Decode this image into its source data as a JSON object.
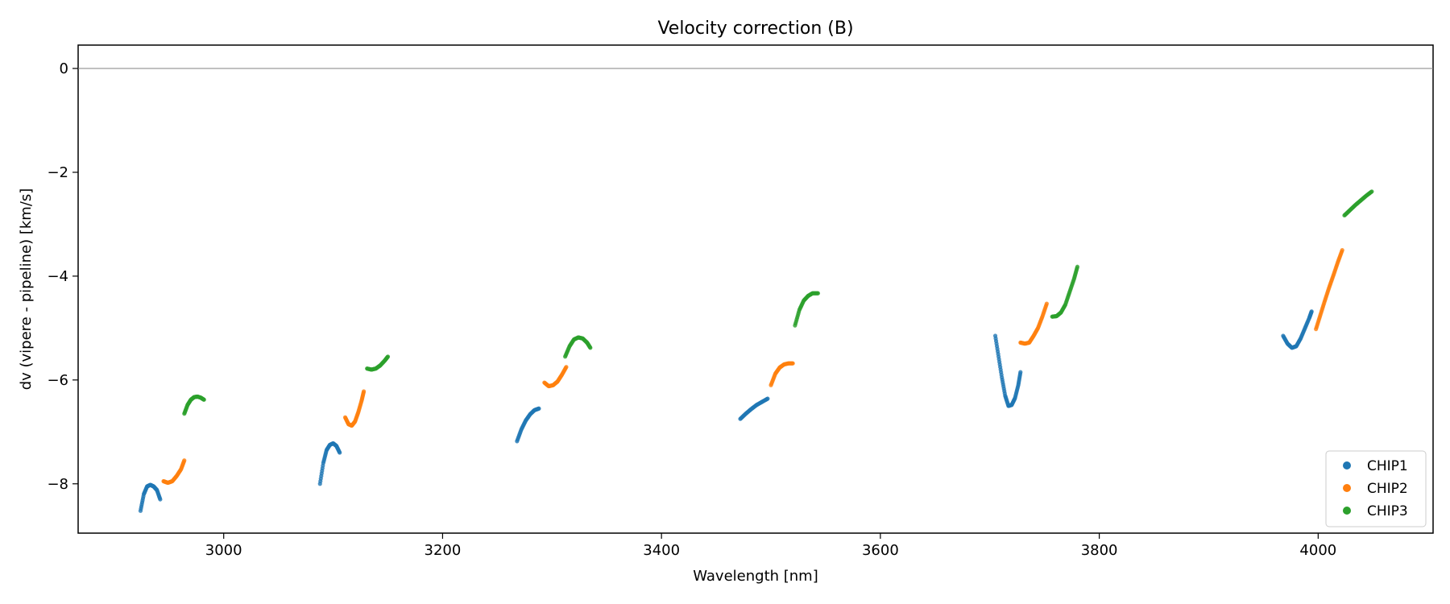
{
  "chart_data": {
    "type": "scatter",
    "title": "Velocity correction (B)",
    "xlabel": "Wavelength [nm]",
    "ylabel": "dv (vipere - pipeline) [km/s]",
    "xlim": [
      2867,
      4105
    ],
    "ylim": [
      -8.95,
      0.45
    ],
    "xticks": [
      3000,
      3200,
      3400,
      3600,
      3800,
      4000
    ],
    "yticks": [
      0,
      -2,
      -4,
      -6,
      -8
    ],
    "hline": 0,
    "legend_position": "lower-right",
    "colors": {
      "CHIP1": "#1f77b4",
      "CHIP2": "#ff7f0e",
      "CHIP3": "#2ca02c",
      "hline": "#808080"
    },
    "series": [
      {
        "name": "CHIP1",
        "segments": [
          {
            "x": [
              2924,
              2927,
              2930,
              2933,
              2936,
              2939,
              2942
            ],
            "y": [
              -8.52,
              -8.2,
              -8.05,
              -8.02,
              -8.05,
              -8.12,
              -8.3
            ]
          },
          {
            "x": [
              3088,
              3091,
              3094,
              3097,
              3100,
              3103,
              3106
            ],
            "y": [
              -8.0,
              -7.6,
              -7.35,
              -7.25,
              -7.22,
              -7.27,
              -7.4
            ]
          },
          {
            "x": [
              3268,
              3272,
              3276,
              3280,
              3284,
              3288
            ],
            "y": [
              -7.18,
              -6.95,
              -6.78,
              -6.66,
              -6.58,
              -6.55
            ]
          },
          {
            "x": [
              3472,
              3477,
              3482,
              3487,
              3492,
              3497
            ],
            "y": [
              -6.75,
              -6.65,
              -6.56,
              -6.48,
              -6.42,
              -6.36
            ]
          },
          {
            "x": [
              3705,
              3708,
              3711,
              3714,
              3717,
              3720,
              3723,
              3726,
              3728
            ],
            "y": [
              -5.15,
              -5.55,
              -5.95,
              -6.3,
              -6.5,
              -6.48,
              -6.35,
              -6.1,
              -5.85
            ]
          },
          {
            "x": [
              3968,
              3972,
              3976,
              3980,
              3984,
              3988,
              3992,
              3994
            ],
            "y": [
              -5.15,
              -5.3,
              -5.38,
              -5.35,
              -5.2,
              -5.0,
              -4.8,
              -4.68
            ]
          }
        ]
      },
      {
        "name": "CHIP2",
        "segments": [
          {
            "x": [
              2945,
              2949,
              2953,
              2957,
              2961,
              2964
            ],
            "y": [
              -7.95,
              -7.98,
              -7.95,
              -7.85,
              -7.72,
              -7.55
            ]
          },
          {
            "x": [
              3111,
              3114,
              3117,
              3120,
              3123,
              3126,
              3128
            ],
            "y": [
              -6.72,
              -6.85,
              -6.88,
              -6.8,
              -6.62,
              -6.4,
              -6.22
            ]
          },
          {
            "x": [
              3293,
              3297,
              3301,
              3305,
              3309,
              3313
            ],
            "y": [
              -6.05,
              -6.12,
              -6.1,
              -6.03,
              -5.9,
              -5.75
            ]
          },
          {
            "x": [
              3500,
              3504,
              3508,
              3512,
              3516,
              3520
            ],
            "y": [
              -6.1,
              -5.88,
              -5.76,
              -5.7,
              -5.68,
              -5.68
            ]
          },
          {
            "x": [
              3728,
              3732,
              3736,
              3740,
              3744,
              3748,
              3752
            ],
            "y": [
              -5.28,
              -5.3,
              -5.28,
              -5.15,
              -5.0,
              -4.78,
              -4.53
            ]
          },
          {
            "x": [
              3998,
              4002,
              4006,
              4010,
              4014,
              4018,
              4022
            ],
            "y": [
              -5.02,
              -4.75,
              -4.48,
              -4.22,
              -3.98,
              -3.73,
              -3.5
            ]
          }
        ]
      },
      {
        "name": "CHIP3",
        "segments": [
          {
            "x": [
              2964,
              2967,
              2970,
              2973,
              2976,
              2979,
              2982
            ],
            "y": [
              -6.65,
              -6.48,
              -6.38,
              -6.33,
              -6.32,
              -6.34,
              -6.38
            ]
          },
          {
            "x": [
              3131,
              3135,
              3139,
              3143,
              3147,
              3150
            ],
            "y": [
              -5.78,
              -5.8,
              -5.78,
              -5.72,
              -5.63,
              -5.55
            ]
          },
          {
            "x": [
              3312,
              3316,
              3320,
              3324,
              3328,
              3332,
              3335
            ],
            "y": [
              -5.55,
              -5.35,
              -5.22,
              -5.18,
              -5.2,
              -5.28,
              -5.38
            ]
          },
          {
            "x": [
              3522,
              3526,
              3530,
              3534,
              3538,
              3543
            ],
            "y": [
              -4.95,
              -4.65,
              -4.47,
              -4.38,
              -4.33,
              -4.33
            ]
          },
          {
            "x": [
              3757,
              3761,
              3765,
              3769,
              3773,
              3777,
              3780
            ],
            "y": [
              -4.78,
              -4.77,
              -4.7,
              -4.55,
              -4.3,
              -4.05,
              -3.82
            ]
          },
          {
            "x": [
              4024,
              4029,
              4034,
              4039,
              4044,
              4049
            ],
            "y": [
              -2.83,
              -2.73,
              -2.63,
              -2.54,
              -2.45,
              -2.37
            ]
          }
        ]
      }
    ]
  }
}
